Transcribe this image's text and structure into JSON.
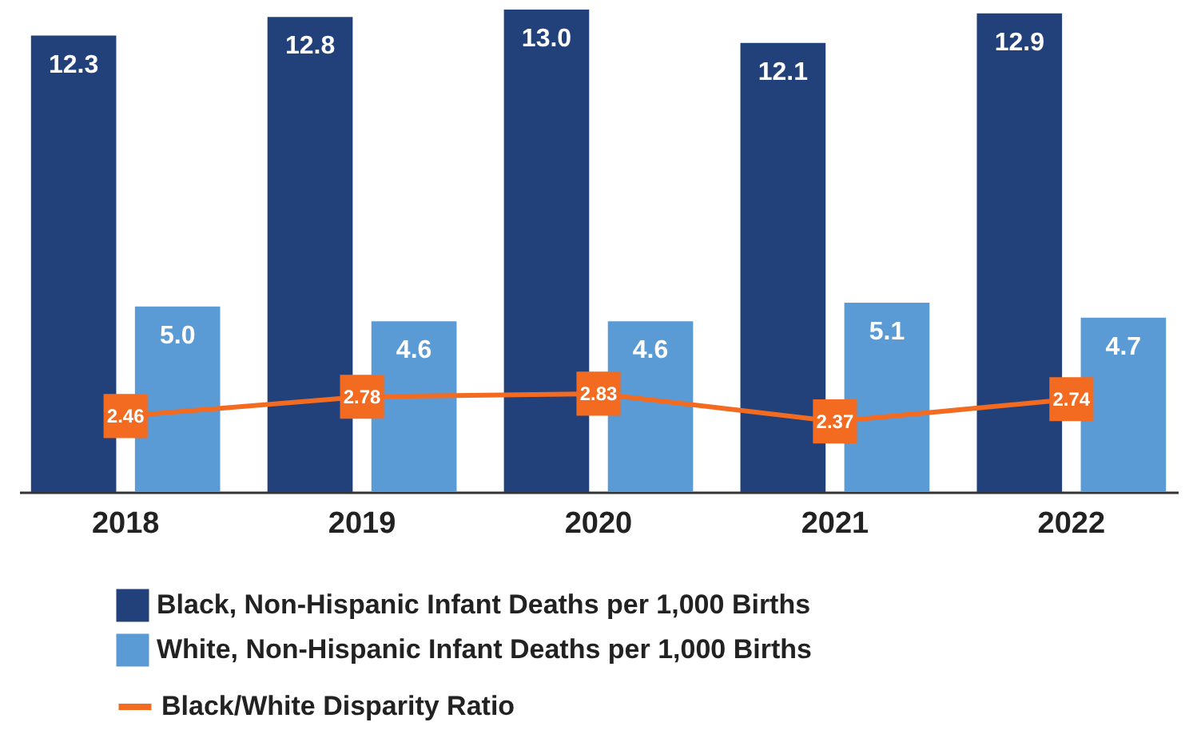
{
  "chart_data": {
    "type": "bar",
    "categories": [
      "2018",
      "2019",
      "2020",
      "2021",
      "2022"
    ],
    "tick_labels": "x",
    "legend": "bottom",
    "marker": "square",
    "y2lim": [
      1.2,
      9.2
    ],
    "series": [
      {
        "name": "Black, Non-Hispanic Infant Deaths per 1,000 Births",
        "color": "#22407a",
        "values": [
          12.3,
          12.8,
          13.0,
          12.1,
          12.9
        ],
        "value_labels": [
          "12.3",
          "12.8",
          "13.0",
          "12.1",
          "12.9"
        ]
      },
      {
        "name": "White, Non-Hispanic Infant Deaths per 1,000 Births",
        "color": "#5b9bd5",
        "values": [
          5.0,
          4.6,
          4.6,
          5.1,
          4.7
        ],
        "value_labels": [
          "5.0",
          "4.6",
          "4.6",
          "5.1",
          "4.7"
        ]
      },
      {
        "name": "Black/White Disparity Ratio",
        "color": "#f26b21",
        "type": "line",
        "axis": "y2",
        "values": [
          2.46,
          2.78,
          2.83,
          2.37,
          2.74
        ],
        "value_labels": [
          "2.46",
          "2.78",
          "2.83",
          "2.37",
          "2.74"
        ]
      }
    ]
  }
}
